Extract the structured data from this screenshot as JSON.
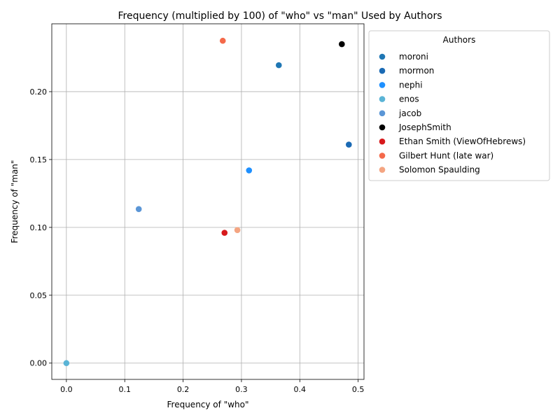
{
  "chart_data": {
    "type": "scatter",
    "title": "Frequency (multiplied by 100) of \"who\" vs \"man\" Used by Authors",
    "xlabel": "Frequency of \"who\"",
    "ylabel": "Frequency of \"man\"",
    "xlim": [
      -0.025,
      0.51
    ],
    "ylim": [
      -0.012,
      0.25
    ],
    "xticks": [
      0.0,
      0.1,
      0.2,
      0.3,
      0.4,
      0.5
    ],
    "xtick_labels": [
      "0.0",
      "0.1",
      "0.2",
      "0.3",
      "0.4",
      "0.5"
    ],
    "yticks": [
      0.0,
      0.05,
      0.1,
      0.15,
      0.2
    ],
    "ytick_labels": [
      "0.00",
      "0.05",
      "0.10",
      "0.15",
      "0.20"
    ],
    "grid": true,
    "legend": {
      "title": "Authors",
      "placement": "outside-upper-right"
    },
    "series": [
      {
        "name": "moroni",
        "color": "#1f77b4",
        "x": [
          0.364
        ],
        "y": [
          0.2195
        ]
      },
      {
        "name": "mormon",
        "color": "#1a6ab4",
        "x": [
          0.484
        ],
        "y": [
          0.161
        ]
      },
      {
        "name": "nephi",
        "color": "#1e90ff",
        "x": [
          0.313
        ],
        "y": [
          0.142
        ]
      },
      {
        "name": "enos",
        "color": "#5ab4d6",
        "x": [
          0.0
        ],
        "y": [
          0.0
        ]
      },
      {
        "name": "jacob",
        "color": "#5b96d6",
        "x": [
          0.124
        ],
        "y": [
          0.1135
        ]
      },
      {
        "name": "JosephSmith",
        "color": "#000000",
        "x": [
          0.472
        ],
        "y": [
          0.235
        ]
      },
      {
        "name": "Ethan Smith (ViewOfHebrews)",
        "color": "#d7191c",
        "x": [
          0.271
        ],
        "y": [
          0.096
        ]
      },
      {
        "name": "Gilbert Hunt (late war)",
        "color": "#f4694a",
        "x": [
          0.268
        ],
        "y": [
          0.2375
        ]
      },
      {
        "name": "Solomon Spaulding",
        "color": "#f4a582",
        "x": [
          0.293
        ],
        "y": [
          0.098
        ]
      }
    ]
  }
}
